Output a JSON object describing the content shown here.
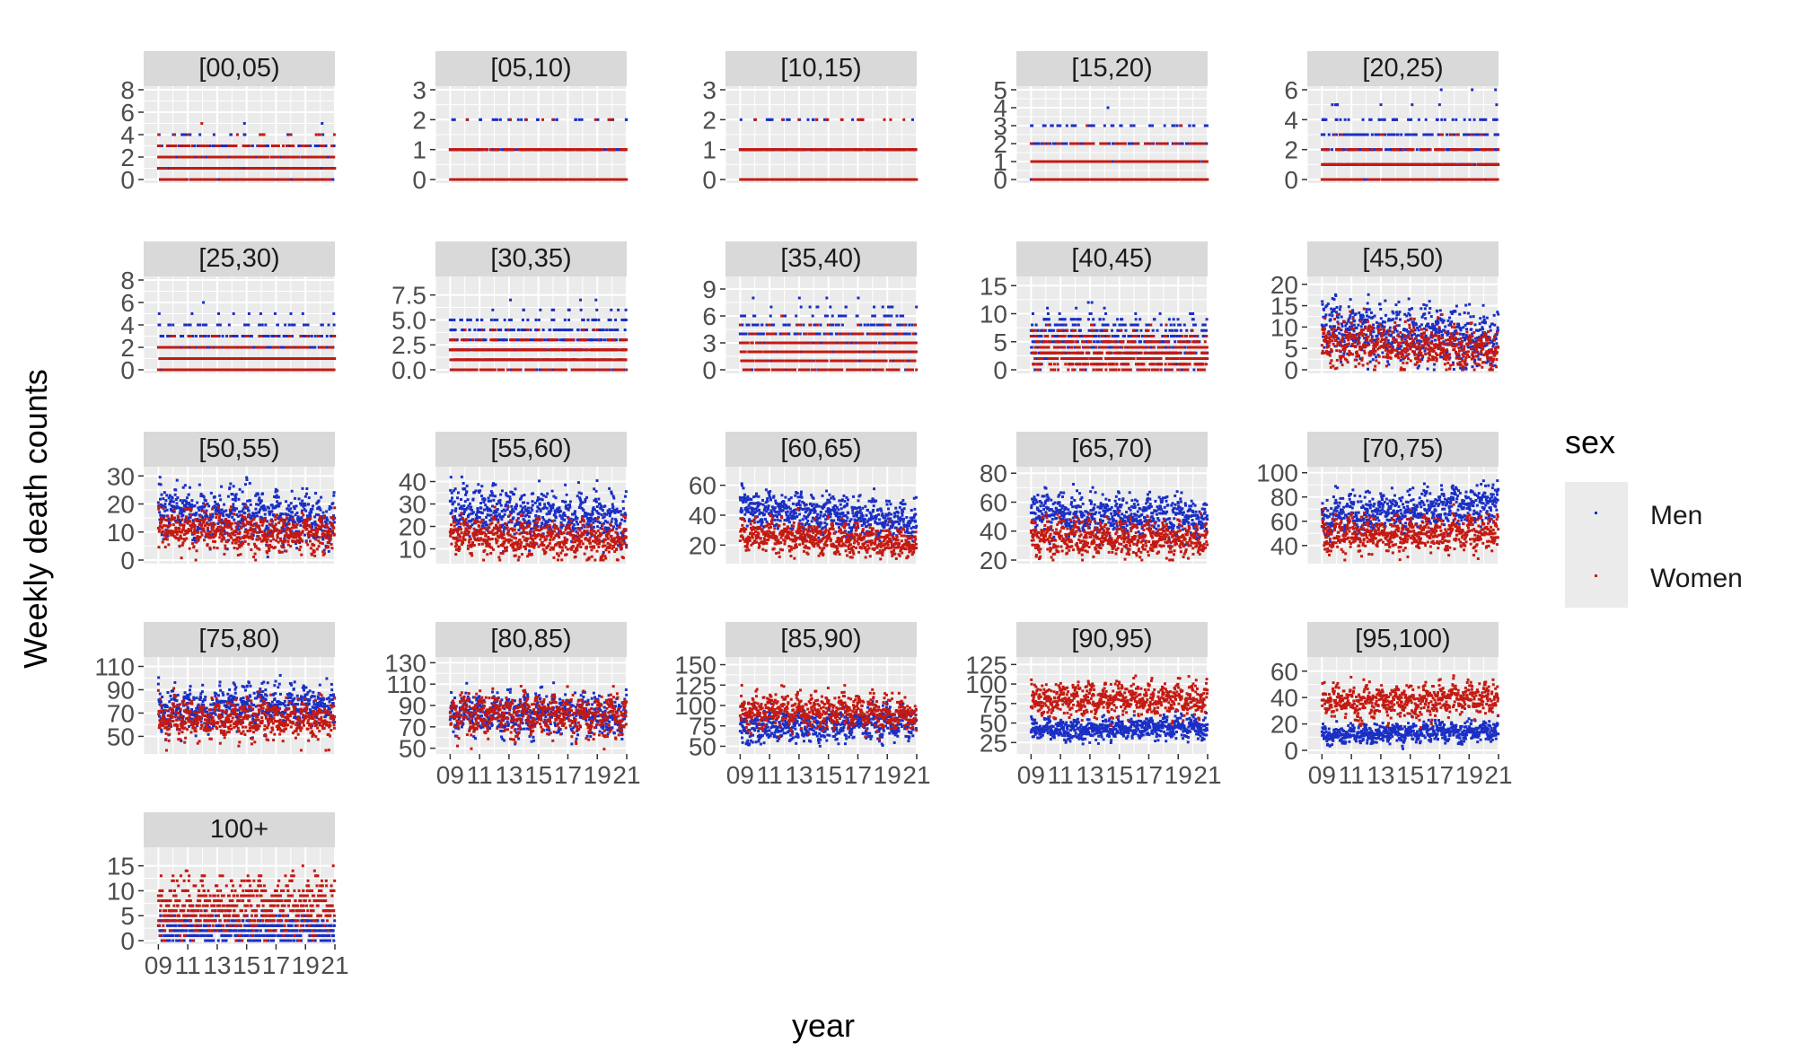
{
  "chart_data": {
    "type": "scatter",
    "title": "",
    "xlabel": "year",
    "ylabel": "Weekly death counts",
    "x_ticks": [
      "09",
      "11",
      "13",
      "15",
      "17",
      "19",
      "21"
    ],
    "xlim": [
      2008,
      2021
    ],
    "grid": true,
    "legend": {
      "title": "sex",
      "position": "right",
      "entries": [
        {
          "name": "Men",
          "color": "#1a2fc4"
        },
        {
          "name": "Women",
          "color": "#c41a12"
        }
      ]
    },
    "series": [
      {
        "name": "Men",
        "color": "#1a2fc4"
      },
      {
        "name": "Women",
        "color": "#c41a12"
      }
    ],
    "panels": [
      {
        "label": "[00,05)",
        "ylim": [
          0,
          8
        ],
        "yticks": [
          "0",
          "2",
          "4",
          "6",
          "8"
        ],
        "men": {
          "mean": 1.3,
          "sd": 1.2,
          "trend": 0
        },
        "women": {
          "mean": 1.1,
          "sd": 1.1,
          "trend": 0
        }
      },
      {
        "label": "[05,10)",
        "ylim": [
          0,
          3
        ],
        "yticks": [
          "0",
          "1",
          "2",
          "3"
        ],
        "men": {
          "mean": 0.35,
          "sd": 0.6,
          "trend": 0
        },
        "women": {
          "mean": 0.3,
          "sd": 0.55,
          "trend": 0
        }
      },
      {
        "label": "[10,15)",
        "ylim": [
          0,
          3
        ],
        "yticks": [
          "0",
          "1",
          "2",
          "3"
        ],
        "men": {
          "mean": 0.35,
          "sd": 0.6,
          "trend": 0
        },
        "women": {
          "mean": 0.3,
          "sd": 0.55,
          "trend": 0
        }
      },
      {
        "label": "[15,20)",
        "ylim": [
          0,
          5
        ],
        "yticks": [
          "0",
          "1",
          "2",
          "3",
          "4",
          "5"
        ],
        "men": {
          "mean": 1.0,
          "sd": 1.0,
          "trend": 0
        },
        "women": {
          "mean": 0.5,
          "sd": 0.7,
          "trend": 0
        }
      },
      {
        "label": "[20,25)",
        "ylim": [
          0,
          6
        ],
        "yticks": [
          "0",
          "2",
          "4",
          "6"
        ],
        "men": {
          "mean": 1.6,
          "sd": 1.3,
          "trend": 0
        },
        "women": {
          "mean": 0.6,
          "sd": 0.8,
          "trend": 0
        }
      },
      {
        "label": "[25,30)",
        "ylim": [
          0,
          8
        ],
        "yticks": [
          "0",
          "2",
          "4",
          "6",
          "8"
        ],
        "men": {
          "mean": 1.6,
          "sd": 1.3,
          "trend": 0
        },
        "women": {
          "mean": 0.7,
          "sd": 0.85,
          "trend": 0
        }
      },
      {
        "label": "[30,35)",
        "ylim": [
          0,
          9
        ],
        "yticks": [
          "0.0",
          "2.5",
          "5.0",
          "7.5"
        ],
        "men": {
          "mean": 2.2,
          "sd": 1.5,
          "trend": 0
        },
        "women": {
          "mean": 1.1,
          "sd": 1.0,
          "trend": 0
        }
      },
      {
        "label": "[35,40)",
        "ylim": [
          0,
          10
        ],
        "yticks": [
          "0",
          "3",
          "6",
          "9"
        ],
        "men": {
          "mean": 3.0,
          "sd": 1.8,
          "trend": 0
        },
        "women": {
          "mean": 1.7,
          "sd": 1.3,
          "trend": 0
        }
      },
      {
        "label": "[40,45)",
        "ylim": [
          0,
          16
        ],
        "yticks": [
          "0",
          "5",
          "10",
          "15"
        ],
        "men": {
          "mean": 5.5,
          "sd": 2.4,
          "trend": -1.5
        },
        "women": {
          "mean": 3.3,
          "sd": 1.8,
          "trend": -0.8
        }
      },
      {
        "label": "[45,50)",
        "ylim": [
          0,
          21
        ],
        "yticks": [
          "0",
          "5",
          "10",
          "15",
          "20"
        ],
        "men": {
          "mean": 10,
          "sd": 3.2,
          "trend": -3
        },
        "women": {
          "mean": 6.5,
          "sd": 2.5,
          "trend": -2
        }
      },
      {
        "label": "[50,55)",
        "ylim": [
          0,
          32
        ],
        "yticks": [
          "0",
          "10",
          "20",
          "30"
        ],
        "men": {
          "mean": 18,
          "sd": 4.3,
          "trend": -4
        },
        "women": {
          "mean": 11,
          "sd": 3.3,
          "trend": -2
        }
      },
      {
        "label": "[55,60)",
        "ylim": [
          5,
          45
        ],
        "yticks": [
          "10",
          "20",
          "30",
          "40"
        ],
        "men": {
          "mean": 28,
          "sd": 5.2,
          "trend": -5
        },
        "women": {
          "mean": 16,
          "sd": 4,
          "trend": -3
        }
      },
      {
        "label": "[60,65)",
        "ylim": [
          10,
          70
        ],
        "yticks": [
          "20",
          "40",
          "60"
        ],
        "men": {
          "mean": 45,
          "sd": 6.5,
          "trend": -10
        },
        "women": {
          "mean": 27,
          "sd": 5,
          "trend": -6
        }
      },
      {
        "label": "[65,70)",
        "ylim": [
          20,
          82
        ],
        "yticks": [
          "20",
          "40",
          "60",
          "80"
        ],
        "men": {
          "mean": 53,
          "sd": 7,
          "trend": -5
        },
        "women": {
          "mean": 36,
          "sd": 6,
          "trend": -2
        }
      },
      {
        "label": "[70,75)",
        "ylim": [
          28,
          102
        ],
        "yticks": [
          "40",
          "60",
          "80",
          "100"
        ],
        "men": {
          "mean": 63,
          "sd": 8,
          "trend": 12
        },
        "women": {
          "mean": 48,
          "sd": 7,
          "trend": 3
        }
      },
      {
        "label": "[75,80)",
        "ylim": [
          38,
          115
        ],
        "yticks": [
          "50",
          "70",
          "90",
          "110"
        ],
        "men": {
          "mean": 73,
          "sd": 8.5,
          "trend": 6
        },
        "women": {
          "mean": 64,
          "sd": 8,
          "trend": 0
        }
      },
      {
        "label": "[80,85)",
        "ylim": [
          48,
          132
        ],
        "yticks": [
          "50",
          "70",
          "90",
          "110",
          "130"
        ],
        "men": {
          "mean": 82,
          "sd": 9,
          "trend": 0
        },
        "women": {
          "mean": 82,
          "sd": 9,
          "trend": -2
        }
      },
      {
        "label": "[85,90)",
        "ylim": [
          45,
          155
        ],
        "yticks": [
          "50",
          "75",
          "100",
          "125",
          "150"
        ],
        "men": {
          "mean": 73,
          "sd": 9,
          "trend": 5
        },
        "women": {
          "mean": 95,
          "sd": 10,
          "trend": -5
        }
      },
      {
        "label": "[90,95)",
        "ylim": [
          15,
          130
        ],
        "yticks": [
          "25",
          "50",
          "75",
          "100",
          "125"
        ],
        "men": {
          "mean": 40,
          "sd": 7,
          "trend": 5
        },
        "women": {
          "mean": 80,
          "sd": 10,
          "trend": 0
        }
      },
      {
        "label": "[95,100)",
        "ylim": [
          0,
          68
        ],
        "yticks": [
          "0",
          "20",
          "40",
          "60"
        ],
        "men": {
          "mean": 12,
          "sd": 3.5,
          "trend": 3
        },
        "women": {
          "mean": 36,
          "sd": 6,
          "trend": 4
        }
      },
      {
        "label": "100+",
        "ylim": [
          0,
          18
        ],
        "yticks": [
          "0",
          "5",
          "10",
          "15"
        ],
        "men": {
          "mean": 2,
          "sd": 1.4,
          "trend": 0
        },
        "women": {
          "mean": 6.5,
          "sd": 2.7,
          "trend": 1
        }
      }
    ]
  }
}
